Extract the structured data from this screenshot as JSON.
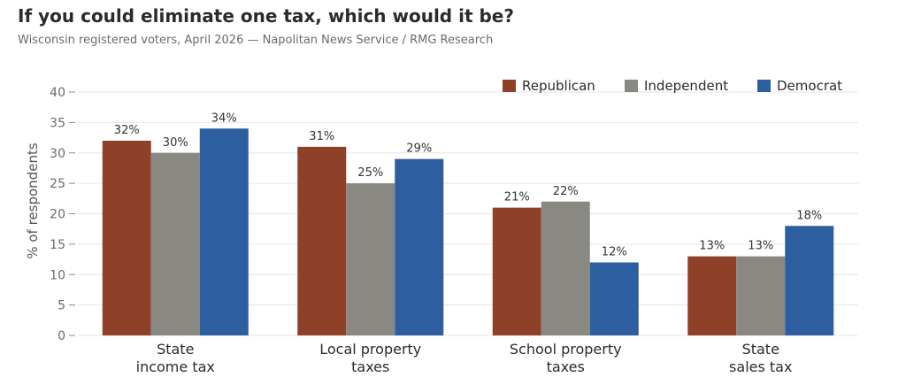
{
  "chart_data": {
    "type": "bar",
    "title": "If you could eliminate one tax, which would it be?",
    "subtitle": "Wisconsin registered voters, April 2026 — Napolitan News Service / RMG Research",
    "ylabel": "% of respondents",
    "xlabel": "",
    "ylim": [
      0,
      40
    ],
    "yticks": [
      0,
      5,
      10,
      15,
      20,
      25,
      30,
      35,
      40
    ],
    "grid": true,
    "legend_position": "top-right",
    "categories": [
      [
        "State",
        "income tax"
      ],
      [
        "Local property",
        "taxes"
      ],
      [
        "School property",
        "taxes"
      ],
      [
        "State",
        "sales tax"
      ]
    ],
    "series": [
      {
        "name": "Republican",
        "color": "#8e4028",
        "values": [
          32,
          31,
          21,
          13
        ]
      },
      {
        "name": "Independent",
        "color": "#8a8882",
        "values": [
          30,
          25,
          22,
          13
        ]
      },
      {
        "name": "Democrat",
        "color": "#2c5ea0",
        "values": [
          34,
          29,
          12,
          18
        ]
      }
    ],
    "value_suffix": "%"
  }
}
